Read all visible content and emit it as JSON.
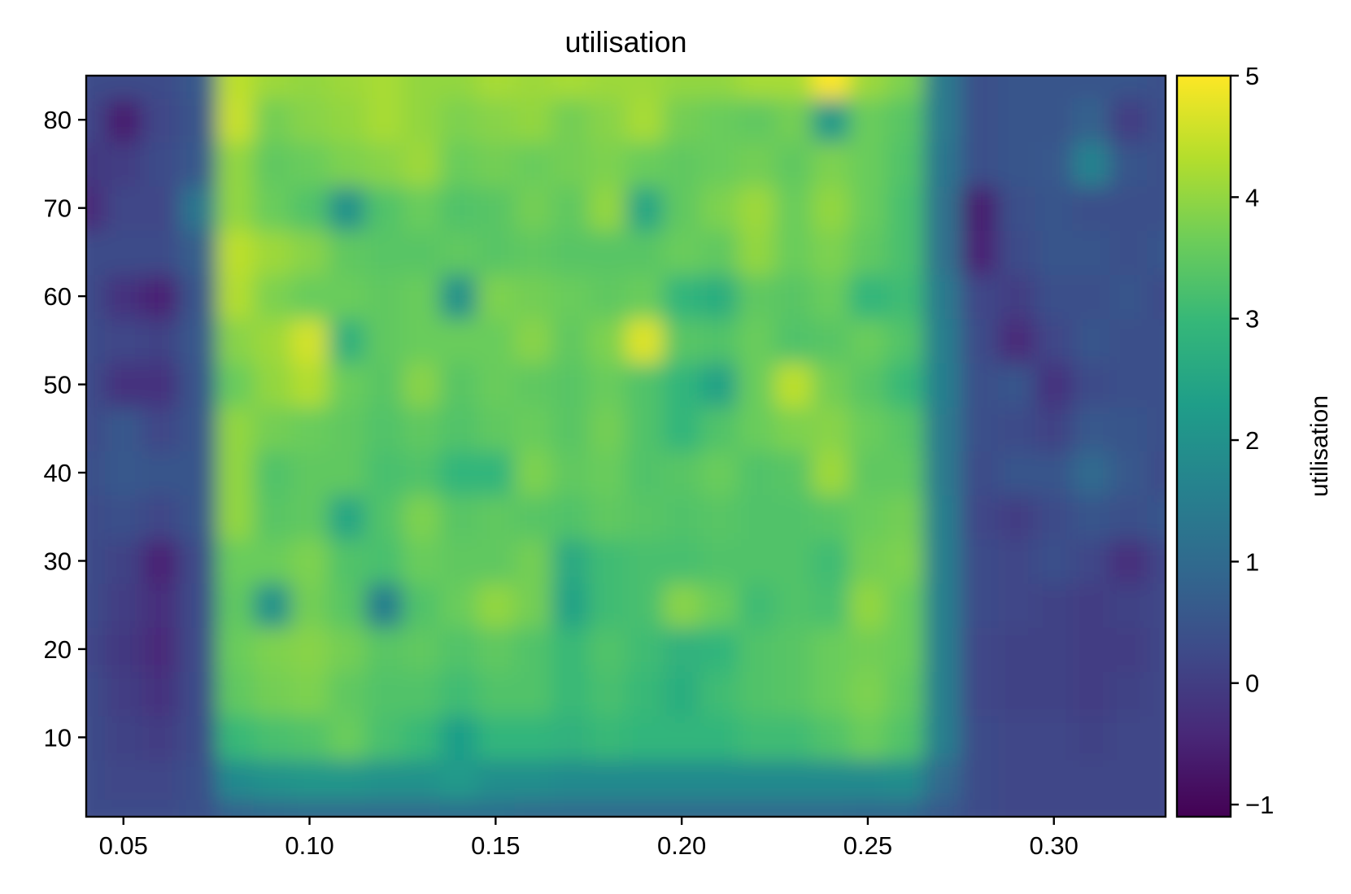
{
  "chart_data": {
    "type": "heatmap",
    "title": "utilisation",
    "xlabel": "",
    "ylabel": "",
    "colorbar_label": "utilisation",
    "colormap": "viridis",
    "xlim": [
      0.04,
      0.33
    ],
    "ylim": [
      1,
      85
    ],
    "clim": [
      -1.1,
      5.0
    ],
    "x_ticks": [
      0.05,
      0.1,
      0.15,
      0.2,
      0.25,
      0.3
    ],
    "x_tick_labels": [
      "0.05",
      "0.10",
      "0.15",
      "0.20",
      "0.25",
      "0.30"
    ],
    "y_ticks": [
      10,
      20,
      30,
      40,
      50,
      60,
      70,
      80
    ],
    "y_tick_labels": [
      "10",
      "20",
      "30",
      "40",
      "50",
      "60",
      "70",
      "80"
    ],
    "colorbar_ticks": [
      -1,
      0,
      1,
      2,
      3,
      4,
      5
    ],
    "colorbar_tick_labels": [
      "−1",
      "0",
      "1",
      "2",
      "3",
      "4",
      "5"
    ],
    "x_centers": [
      0.04,
      0.05,
      0.06,
      0.07,
      0.08,
      0.09,
      0.1,
      0.11,
      0.12,
      0.13,
      0.14,
      0.15,
      0.16,
      0.17,
      0.18,
      0.19,
      0.2,
      0.21,
      0.22,
      0.23,
      0.24,
      0.25,
      0.26,
      0.27,
      0.28,
      0.29,
      0.3,
      0.31,
      0.32,
      0.33
    ],
    "y_centers": [
      1,
      5,
      10,
      15,
      20,
      25,
      30,
      35,
      40,
      45,
      50,
      55,
      60,
      65,
      70,
      75,
      80,
      85
    ],
    "values": [
      [
        0.3,
        0.3,
        0.3,
        0.4,
        0.8,
        0.9,
        1.0,
        1.0,
        1.0,
        1.0,
        1.1,
        1.1,
        1.0,
        1.0,
        1.0,
        1.0,
        1.0,
        1.0,
        1.0,
        1.0,
        1.0,
        0.9,
        0.9,
        0.6,
        0.3,
        0.2,
        0.2,
        0.2,
        0.2,
        0.2
      ],
      [
        0.3,
        0.2,
        0.2,
        0.4,
        1.8,
        2.0,
        2.1,
        2.1,
        2.0,
        2.0,
        2.2,
        1.9,
        1.9,
        1.8,
        1.8,
        1.8,
        1.8,
        1.8,
        1.8,
        1.8,
        1.8,
        1.8,
        1.9,
        1.0,
        0.3,
        0.2,
        0.2,
        0.2,
        0.2,
        0.2
      ],
      [
        0.3,
        0.1,
        0.0,
        0.3,
        3.0,
        3.2,
        3.3,
        3.6,
        3.2,
        3.0,
        2.3,
        2.9,
        2.9,
        2.8,
        3.0,
        2.9,
        2.9,
        2.9,
        3.1,
        3.1,
        3.3,
        3.6,
        3.3,
        1.5,
        0.3,
        0.2,
        0.2,
        0.1,
        0.2,
        0.2
      ],
      [
        0.3,
        0.0,
        -0.2,
        0.3,
        3.5,
        3.7,
        3.8,
        3.5,
        3.3,
        3.3,
        3.1,
        3.3,
        3.3,
        3.0,
        3.2,
        3.0,
        2.7,
        3.1,
        3.3,
        3.4,
        3.6,
        3.8,
        3.5,
        1.5,
        0.2,
        0.1,
        0.1,
        0.0,
        0.1,
        0.2
      ],
      [
        0.2,
        -0.1,
        -0.4,
        0.3,
        3.6,
        3.8,
        3.9,
        3.7,
        3.4,
        3.5,
        3.3,
        3.5,
        3.3,
        3.0,
        3.3,
        3.1,
        2.8,
        2.9,
        3.3,
        3.4,
        3.6,
        3.7,
        3.6,
        1.5,
        0.2,
        0.1,
        0.1,
        0.0,
        0.0,
        0.2
      ],
      [
        0.3,
        0.0,
        -0.3,
        0.3,
        3.5,
        2.0,
        3.7,
        3.4,
        1.5,
        3.3,
        3.6,
        4.0,
        3.7,
        2.4,
        3.1,
        3.2,
        3.9,
        3.6,
        3.1,
        3.3,
        3.2,
        4.0,
        3.6,
        1.5,
        0.3,
        0.2,
        0.1,
        0.0,
        0.1,
        0.2
      ],
      [
        0.3,
        0.1,
        -0.5,
        0.3,
        3.6,
        3.6,
        3.8,
        3.3,
        3.2,
        3.6,
        3.5,
        3.5,
        3.7,
        2.6,
        3.1,
        3.2,
        3.2,
        3.3,
        3.3,
        3.3,
        3.1,
        3.7,
        3.8,
        1.5,
        0.3,
        0.2,
        0.4,
        0.2,
        -0.3,
        0.2
      ],
      [
        0.3,
        0.4,
        0.2,
        0.5,
        4.0,
        3.4,
        3.5,
        2.5,
        3.3,
        3.8,
        3.4,
        3.5,
        3.4,
        3.3,
        3.5,
        3.4,
        3.3,
        3.4,
        3.3,
        3.3,
        3.4,
        3.6,
        3.7,
        1.5,
        0.2,
        0.0,
        0.3,
        0.5,
        0.4,
        0.5
      ],
      [
        0.4,
        0.6,
        0.5,
        0.5,
        4.0,
        3.3,
        3.5,
        3.5,
        3.2,
        3.3,
        2.9,
        2.9,
        3.8,
        3.5,
        3.6,
        3.3,
        3.4,
        3.6,
        3.3,
        3.4,
        4.1,
        3.5,
        3.5,
        1.4,
        0.3,
        0.5,
        0.5,
        1.0,
        0.6,
        0.3
      ],
      [
        0.3,
        0.6,
        0.2,
        0.5,
        4.0,
        3.7,
        3.6,
        3.5,
        3.3,
        3.5,
        3.3,
        3.5,
        3.6,
        3.4,
        3.7,
        3.3,
        2.9,
        3.3,
        3.6,
        3.8,
        3.9,
        3.6,
        3.4,
        1.4,
        0.4,
        0.3,
        0.1,
        0.6,
        0.5,
        0.4
      ],
      [
        0.3,
        -0.2,
        -0.2,
        0.5,
        3.6,
        4.0,
        4.3,
        3.6,
        3.4,
        3.9,
        3.4,
        3.6,
        3.5,
        3.4,
        3.6,
        3.3,
        2.9,
        2.4,
        3.6,
        4.4,
        3.7,
        3.4,
        3.0,
        1.5,
        0.4,
        0.5,
        -0.2,
        0.3,
        0.4,
        0.4
      ],
      [
        0.3,
        0.2,
        0.1,
        0.6,
        3.9,
        4.1,
        4.6,
        2.8,
        3.5,
        3.6,
        3.6,
        3.6,
        3.9,
        3.5,
        3.8,
        4.7,
        3.4,
        3.3,
        3.6,
        3.3,
        3.4,
        3.6,
        3.3,
        1.5,
        0.3,
        -0.4,
        0.2,
        0.5,
        0.4,
        0.4
      ],
      [
        0.3,
        -0.2,
        -0.5,
        0.5,
        4.3,
        3.8,
        3.6,
        3.6,
        3.5,
        3.6,
        2.0,
        3.8,
        3.7,
        3.6,
        3.5,
        3.6,
        2.9,
        2.7,
        3.5,
        3.4,
        3.6,
        2.9,
        3.1,
        1.4,
        0.2,
        0.0,
        0.4,
        0.4,
        0.5,
        0.3
      ],
      [
        0.3,
        0.3,
        0.3,
        0.7,
        4.4,
        4.1,
        3.9,
        3.5,
        3.4,
        3.4,
        3.5,
        3.4,
        3.5,
        3.4,
        3.4,
        3.4,
        3.6,
        3.5,
        4.0,
        3.6,
        3.8,
        3.5,
        3.2,
        1.2,
        -0.5,
        0.3,
        0.5,
        0.5,
        0.4,
        0.5
      ],
      [
        -0.4,
        0.2,
        0.2,
        1.3,
        4.0,
        3.6,
        3.3,
        2.0,
        3.3,
        3.6,
        3.3,
        3.4,
        3.7,
        3.5,
        4.0,
        2.5,
        3.5,
        3.8,
        4.1,
        3.6,
        4.0,
        3.6,
        3.2,
        1.2,
        -0.6,
        0.4,
        0.5,
        0.4,
        0.4,
        0.4
      ],
      [
        -0.1,
        0.0,
        0.3,
        0.6,
        4.0,
        3.5,
        3.6,
        3.8,
        3.9,
        4.1,
        3.6,
        3.7,
        3.6,
        3.7,
        3.8,
        3.6,
        3.5,
        3.6,
        3.7,
        3.5,
        3.8,
        3.6,
        3.3,
        1.3,
        0.4,
        0.5,
        0.6,
        1.6,
        0.5,
        0.4
      ],
      [
        0.2,
        -0.6,
        0.2,
        0.5,
        4.5,
        3.7,
        3.9,
        4.0,
        4.2,
        4.0,
        3.8,
        3.9,
        4.0,
        3.7,
        3.9,
        4.2,
        3.7,
        3.6,
        3.5,
        3.7,
        2.2,
        3.6,
        3.4,
        1.4,
        0.4,
        0.5,
        0.5,
        0.8,
        0.0,
        0.4
      ],
      [
        0.3,
        0.3,
        0.3,
        0.6,
        4.4,
        4.1,
        4.0,
        4.1,
        4.2,
        4.0,
        4.0,
        4.2,
        4.1,
        4.2,
        4.1,
        4.1,
        4.0,
        4.0,
        4.2,
        4.2,
        5.0,
        4.1,
        3.8,
        1.4,
        0.4,
        0.5,
        0.5,
        0.5,
        0.5,
        0.4
      ]
    ]
  }
}
